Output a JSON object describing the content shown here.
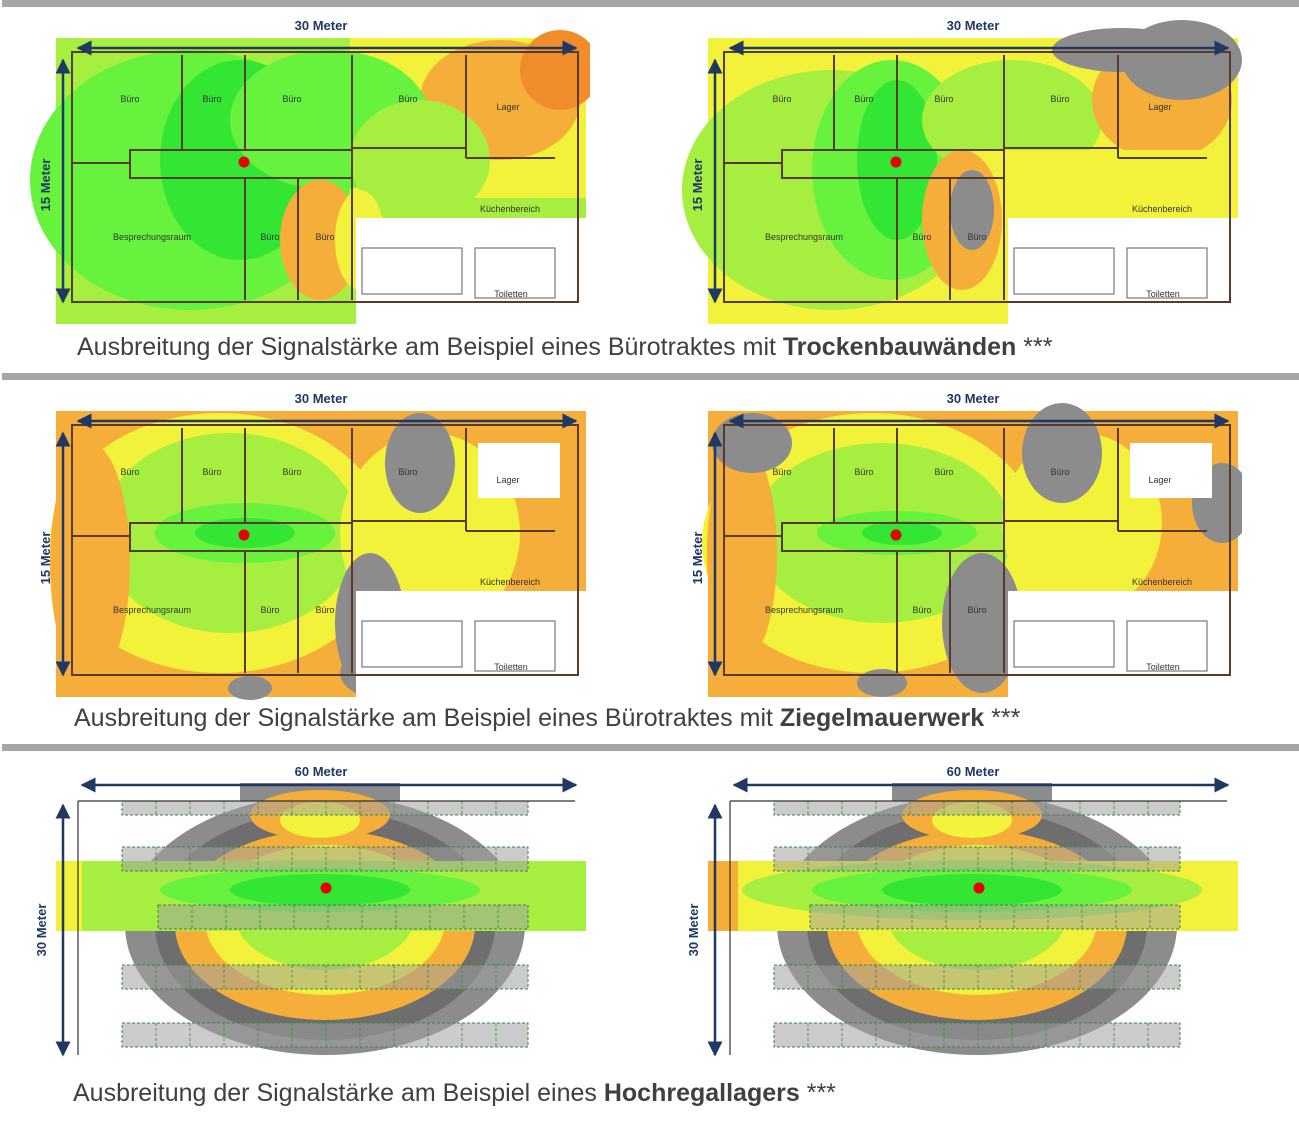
{
  "colors": {
    "green_strong": "#33e633",
    "green": "#66f23d",
    "green_light": "#a6ee40",
    "yellow": "#f2f23a",
    "orange": "#f5ae3a",
    "orange_dark": "#f08c2a",
    "gray": "#8c8c8c",
    "gray_dark": "#6e6e6e",
    "wall": "#5a3a2a",
    "arrow": "#1f3864",
    "access_point": "#e60000"
  },
  "sections": [
    {
      "id": "drywall",
      "caption_prefix": "Ausbreitung der Signalstärke am Beispiel eines Bürotraktes mit ",
      "caption_bold": "Trockenbauwänden",
      "caption_suffix": " ***",
      "width_label": "30 Meter",
      "height_label": "15 Meter",
      "rooms": {
        "office": "Büro",
        "storage": "Lager",
        "meeting": "Besprechungsraum",
        "kitchen": "Küchenbereich",
        "toilets": "Toiletten"
      }
    },
    {
      "id": "brick",
      "caption_prefix": "Ausbreitung der Signalstärke am Beispiel eines Bürotraktes mit ",
      "caption_bold": "Ziegelmauerwerk",
      "caption_suffix": " ***",
      "width_label": "30 Meter",
      "height_label": "15 Meter",
      "rooms": {
        "office": "Büro",
        "storage": "Lager",
        "meeting": "Besprechungsraum",
        "kitchen": "Küchenbereich",
        "toilets": "Toiletten"
      }
    },
    {
      "id": "warehouse",
      "caption_prefix": "Ausbreitung der Signalstärke am Beispiel eines ",
      "caption_bold": "Hochregallagers",
      "caption_suffix": " ***",
      "width_label": "60 Meter",
      "height_label": "30 Meter"
    }
  ]
}
